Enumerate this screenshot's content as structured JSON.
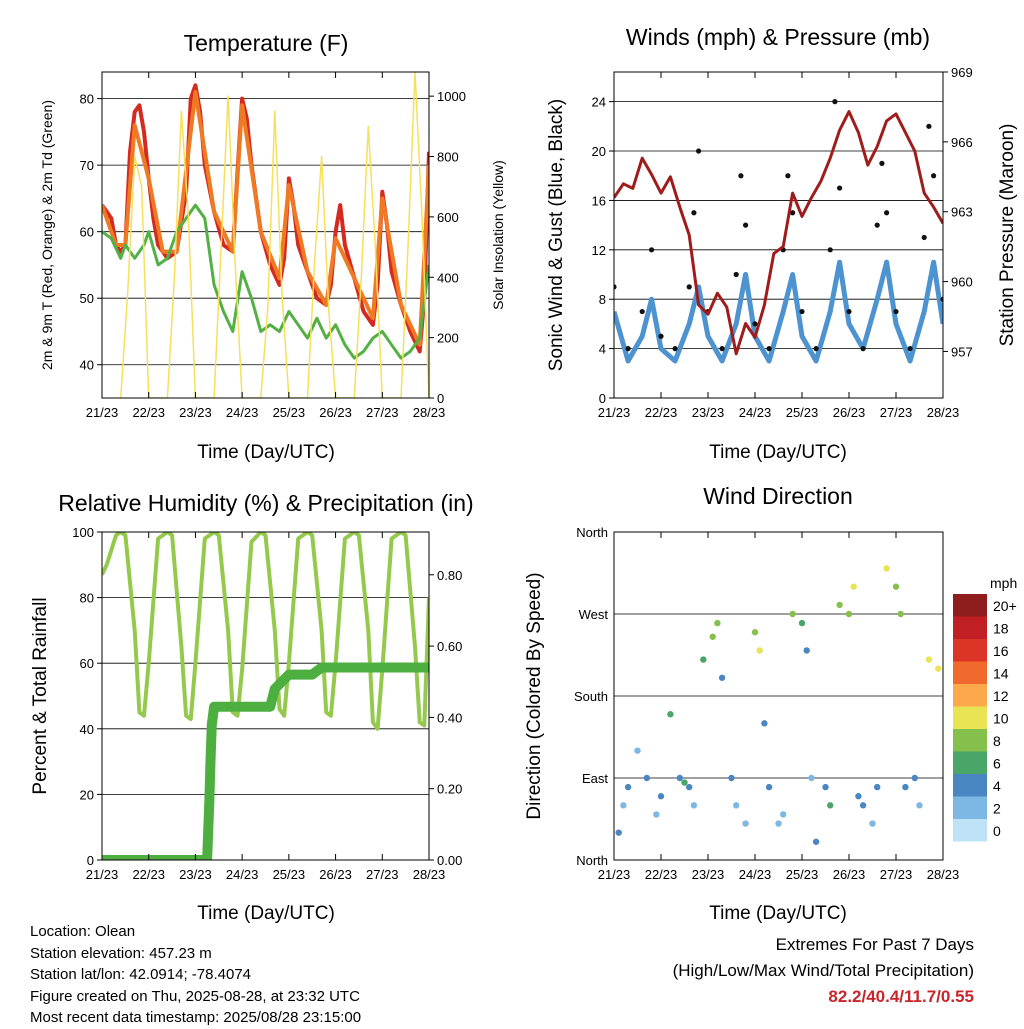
{
  "x_ticks": [
    "21/23",
    "22/23",
    "23/23",
    "24/23",
    "25/23",
    "26/23",
    "27/23",
    "28/23"
  ],
  "panels": {
    "temperature": {
      "title": "Temperature (F)",
      "xlabel": "Time (Day/UTC)",
      "ylabel_left": "2m & 9m T (Red, Orange) & 2m Td (Green)",
      "ylabel_right": "Solar Insolation (Yellow)"
    },
    "winds": {
      "title": "Winds (mph) & Pressure (mb)",
      "xlabel": "Time (Day/UTC)",
      "ylabel_left": "Sonic Wind & Gust (Blue, Black)",
      "ylabel_right": "Station Pressure (Maroon)"
    },
    "humidity": {
      "title": "Relative Humidity (%) & Precipitation (in)",
      "xlabel": "Time (Day/UTC)",
      "ylabel_left": "Percent & Total Rainfall"
    },
    "direction": {
      "title": "Wind Direction",
      "xlabel": "Time (Day/UTC)",
      "ylabel_left": "Direction (Colored By Speed)",
      "legend_title": "mph"
    }
  },
  "footer": {
    "location": "Location: Olean",
    "elevation": "Station elevation: 457.23 m",
    "latlon": "Station lat/lon: 42.0914; -78.4074",
    "created": "Figure created on Thu, 2025-08-28, at 23:32 UTC",
    "recent": "Most recent data timestamp: 2025/08/28 23:15:00"
  },
  "extremes": {
    "line1": "Extremes For Past 7 Days",
    "line2": "(High/Low/Max Wind/Total Precipitation)",
    "values": "82.2/40.4/11.7/0.55"
  },
  "chart_data": [
    {
      "type": "line",
      "title": "Temperature (F)",
      "xlabel": "Time (Day/UTC)",
      "ylabel": "2m & 9m T (Red, Orange) & 2m Td (Green)",
      "y2label": "Solar Insolation (Yellow)",
      "ylim": [
        35,
        84
      ],
      "yticks": [
        40,
        50,
        60,
        70,
        80
      ],
      "y2lim": [
        0,
        1080
      ],
      "y2ticks": [
        0,
        200,
        400,
        600,
        800,
        1000
      ],
      "x_ticks": [
        "21/23",
        "22/23",
        "23/23",
        "24/23",
        "25/23",
        "26/23",
        "27/23",
        "28/23"
      ],
      "colors": {
        "temp2m": "#d42a20",
        "temp9m": "#f07a24",
        "dewpoint": "#52b044",
        "solar": "#f5e05c"
      },
      "series": [
        {
          "axis": "left",
          "color_key": "temp2m",
          "x": [
            0,
            0.1,
            0.2,
            0.3,
            0.4,
            0.5,
            0.6,
            0.7,
            0.8,
            0.9,
            1.0,
            1.1,
            1.2,
            1.4,
            1.6,
            1.8,
            1.9,
            2.0,
            2.1,
            2.2,
            2.4,
            2.6,
            2.8,
            2.9,
            3.0,
            3.1,
            3.2,
            3.4,
            3.6,
            3.8,
            3.9,
            4.0,
            4.1,
            4.2,
            4.4,
            4.6,
            4.8,
            4.9,
            5.0,
            5.1,
            5.2,
            5.4,
            5.6,
            5.8,
            5.9,
            6.0,
            6.1,
            6.2,
            6.4,
            6.6,
            6.8,
            6.9,
            7.0
          ],
          "y": [
            64,
            63,
            62,
            58,
            57,
            58,
            72,
            78,
            79,
            75,
            68,
            62,
            58,
            56,
            57,
            66,
            80,
            82,
            78,
            70,
            63,
            58,
            57,
            69,
            80,
            77,
            70,
            60,
            55,
            52,
            56,
            68,
            64,
            58,
            54,
            50,
            49,
            52,
            60,
            64,
            58,
            53,
            48,
            46,
            52,
            66,
            61,
            54,
            49,
            45,
            42,
            50,
            72
          ]
        },
        {
          "axis": "left",
          "color_key": "temp9m",
          "x": [
            0,
            0.3,
            0.5,
            0.7,
            1.0,
            1.3,
            1.6,
            2.0,
            2.4,
            2.8,
            3.0,
            3.4,
            3.8,
            4.0,
            4.4,
            4.8,
            5.0,
            5.4,
            5.8,
            6.0,
            6.4,
            6.8,
            7.0
          ],
          "y": [
            64,
            58,
            58,
            76,
            68,
            57,
            57,
            81,
            63,
            57,
            79,
            60,
            53,
            67,
            54,
            49,
            59,
            53,
            47,
            65,
            49,
            43,
            70
          ]
        },
        {
          "axis": "left",
          "color_key": "dewpoint",
          "x": [
            0,
            0.2,
            0.4,
            0.5,
            0.7,
            0.9,
            1.0,
            1.2,
            1.4,
            1.6,
            1.8,
            2.0,
            2.2,
            2.4,
            2.6,
            2.8,
            3.0,
            3.2,
            3.4,
            3.6,
            3.8,
            4.0,
            4.2,
            4.4,
            4.6,
            4.8,
            5.0,
            5.2,
            5.4,
            5.6,
            5.8,
            6.0,
            6.2,
            6.4,
            6.6,
            6.8,
            7.0
          ],
          "y": [
            60,
            59,
            56,
            58,
            56,
            58,
            60,
            55,
            56,
            60,
            62,
            64,
            62,
            52,
            48,
            45,
            54,
            50,
            45,
            46,
            45,
            48,
            46,
            44,
            47,
            44,
            46,
            43,
            41,
            42,
            44,
            45,
            43,
            41,
            42,
            44,
            55
          ]
        },
        {
          "axis": "right",
          "color_key": "solar",
          "x": [
            0.4,
            0.55,
            0.7,
            0.85,
            1.0,
            1.4,
            1.55,
            1.7,
            1.85,
            2.0,
            2.4,
            2.55,
            2.7,
            2.85,
            3.0,
            3.4,
            3.55,
            3.7,
            3.85,
            4.0,
            4.4,
            4.55,
            4.7,
            4.85,
            5.0,
            5.4,
            5.55,
            5.7,
            5.85,
            6.0,
            6.4,
            6.55,
            6.7,
            6.85,
            7.0
          ],
          "y": [
            0,
            350,
            800,
            700,
            0,
            0,
            400,
            950,
            600,
            0,
            0,
            500,
            1000,
            450,
            0,
            0,
            300,
            950,
            350,
            0,
            0,
            450,
            800,
            300,
            0,
            0,
            400,
            900,
            500,
            0,
            0,
            500,
            1080,
            600,
            0
          ]
        }
      ]
    },
    {
      "type": "line",
      "title": "Winds (mph) & Pressure (mb)",
      "xlabel": "Time (Day/UTC)",
      "ylabel": "Sonic Wind & Gust (Blue, Black)",
      "y2label": "Station Pressure (Maroon)",
      "ylim": [
        0,
        26.4
      ],
      "yticks": [
        0,
        4,
        8,
        12,
        16,
        20,
        24
      ],
      "y2lim": [
        955,
        969
      ],
      "y2ticks": [
        957,
        960,
        963,
        966,
        969
      ],
      "x_ticks": [
        "21/23",
        "22/23",
        "23/23",
        "24/23",
        "25/23",
        "26/23",
        "27/23",
        "28/23"
      ],
      "colors": {
        "wind": "#4d93d0",
        "gust": "#111111",
        "pressure": "#a01c1c"
      },
      "series": [
        {
          "axis": "left",
          "color_key": "wind",
          "x": [
            0,
            0.3,
            0.6,
            0.8,
            1.0,
            1.3,
            1.6,
            1.8,
            2.0,
            2.3,
            2.6,
            2.8,
            3.0,
            3.3,
            3.6,
            3.8,
            4.0,
            4.3,
            4.6,
            4.8,
            5.0,
            5.3,
            5.6,
            5.8,
            6.0,
            6.3,
            6.6,
            6.8,
            7.0
          ],
          "y": [
            7,
            3,
            5,
            8,
            4,
            3,
            6,
            9,
            5,
            3,
            6,
            10,
            5,
            3,
            7,
            10,
            5,
            3,
            7,
            11,
            6,
            4,
            8,
            11,
            6,
            3,
            7,
            11,
            6
          ]
        },
        {
          "axis": "left",
          "color_key": "gust",
          "x": [
            0,
            0.3,
            0.6,
            0.8,
            1.0,
            1.3,
            1.6,
            1.7,
            1.8,
            2.0,
            2.3,
            2.6,
            2.7,
            2.8,
            3.0,
            3.3,
            3.6,
            3.7,
            3.8,
            4.0,
            4.3,
            4.6,
            4.7,
            4.8,
            5.0,
            5.3,
            5.6,
            5.7,
            5.8,
            6.0,
            6.3,
            6.6,
            6.7,
            6.8,
            7.0
          ],
          "y": [
            9,
            4,
            7,
            12,
            5,
            4,
            9,
            15,
            20,
            7,
            4,
            10,
            18,
            14,
            6,
            4,
            12,
            18,
            15,
            7,
            4,
            12,
            24,
            17,
            7,
            4,
            14,
            19,
            15,
            7,
            4,
            13,
            22,
            18,
            8
          ]
        },
        {
          "axis": "right",
          "color_key": "pressure",
          "x": [
            0,
            0.2,
            0.4,
            0.6,
            0.8,
            1.0,
            1.2,
            1.4,
            1.6,
            1.8,
            2.0,
            2.2,
            2.4,
            2.6,
            2.8,
            3.0,
            3.2,
            3.4,
            3.6,
            3.8,
            4.0,
            4.2,
            4.4,
            4.6,
            4.8,
            5.0,
            5.2,
            5.4,
            5.6,
            5.8,
            6.0,
            6.2,
            6.4,
            6.6,
            6.8,
            7.0
          ],
          "y": [
            963.6,
            964.2,
            964.0,
            965.3,
            964.6,
            963.8,
            964.5,
            963.2,
            962.0,
            959.0,
            958.6,
            959.5,
            958.9,
            956.9,
            958.2,
            957.6,
            959.0,
            961.2,
            961.5,
            963.8,
            962.8,
            963.6,
            964.3,
            965.3,
            966.5,
            967.3,
            966.4,
            965.0,
            965.8,
            966.9,
            967.2,
            966.4,
            965.6,
            963.8,
            963.2,
            962.5
          ]
        }
      ]
    },
    {
      "type": "line",
      "title": "Relative Humidity (%) & Precipitation (in)",
      "xlabel": "Time (Day/UTC)",
      "ylabel": "Percent & Total Rainfall",
      "ylim": [
        0,
        100
      ],
      "yticks": [
        0,
        20,
        40,
        60,
        80,
        100
      ],
      "y2lim": [
        0,
        0.92
      ],
      "y2ticks": [
        0.0,
        0.2,
        0.4,
        0.6,
        0.8
      ],
      "y2ticklabels": [
        "0.00",
        "0.20",
        "0.40",
        "0.60",
        "0.80"
      ],
      "x_ticks": [
        "21/23",
        "22/23",
        "23/23",
        "24/23",
        "25/23",
        "26/23",
        "27/23",
        "28/23"
      ],
      "colors": {
        "rh": "#95c94e",
        "precip": "#4caf3f"
      },
      "series": [
        {
          "axis": "left",
          "color_key": "rh",
          "x": [
            0,
            0.1,
            0.3,
            0.4,
            0.5,
            0.7,
            0.8,
            0.9,
            1.0,
            1.2,
            1.4,
            1.5,
            1.7,
            1.8,
            1.9,
            2.0,
            2.2,
            2.4,
            2.5,
            2.7,
            2.8,
            2.9,
            3.0,
            3.2,
            3.4,
            3.5,
            3.7,
            3.8,
            3.9,
            4.0,
            4.2,
            4.4,
            4.5,
            4.7,
            4.8,
            4.9,
            5.0,
            5.2,
            5.4,
            5.5,
            5.7,
            5.8,
            5.9,
            6.0,
            6.2,
            6.4,
            6.5,
            6.7,
            6.8,
            6.9,
            7.0
          ],
          "y": [
            87,
            90,
            99,
            100,
            99,
            70,
            45,
            44,
            60,
            98,
            100,
            99,
            65,
            44,
            43,
            60,
            98,
            100,
            99,
            70,
            45,
            44,
            58,
            97,
            100,
            99,
            70,
            46,
            44,
            60,
            98,
            100,
            99,
            70,
            45,
            44,
            60,
            98,
            100,
            99,
            70,
            42,
            40,
            58,
            98,
            100,
            99,
            65,
            42,
            41,
            80
          ]
        },
        {
          "axis": "right",
          "color_key": "precip",
          "x": [
            0,
            1.0,
            2.0,
            2.25,
            2.3,
            2.32,
            2.35,
            2.4,
            2.8,
            3.2,
            3.6,
            3.7,
            4.0,
            4.5,
            4.7,
            5.0,
            5.5,
            6.0,
            6.5,
            7.0
          ],
          "y": [
            0.0,
            0.0,
            0.0,
            0.0,
            0.17,
            0.27,
            0.38,
            0.43,
            0.43,
            0.43,
            0.43,
            0.48,
            0.52,
            0.52,
            0.54,
            0.54,
            0.54,
            0.54,
            0.54,
            0.54
          ]
        }
      ]
    },
    {
      "type": "scatter",
      "title": "Wind Direction",
      "xlabel": "Time (Day/UTC)",
      "ylabel": "Direction (Colored By Speed)",
      "yticks": [
        "North",
        "East",
        "South",
        "West",
        "North"
      ],
      "ylim": [
        0,
        360
      ],
      "x_ticks": [
        "21/23",
        "22/23",
        "23/23",
        "24/23",
        "25/23",
        "26/23",
        "27/23",
        "28/23"
      ],
      "legend_title": "mph",
      "legend_placement": "right",
      "legend_labels": [
        "20+",
        "18",
        "16",
        "14",
        "12",
        "10",
        "8",
        "6",
        "4",
        "2",
        "0"
      ],
      "legend_colors": [
        "#8f1d1d",
        "#c01f24",
        "#dc3527",
        "#f06a2d",
        "#fba94a",
        "#e8e453",
        "#86c04c",
        "#4aa569",
        "#4a87c2",
        "#7cb8e3",
        "#bfe3f6"
      ],
      "series": [
        {
          "name": "",
          "x": [
            0.1,
            0.2,
            0.3,
            0.5,
            0.7,
            0.9,
            1.0,
            1.2,
            1.4,
            1.5,
            1.6,
            1.7,
            1.9,
            2.1,
            2.2,
            2.3,
            2.5,
            2.6,
            2.8,
            3.0,
            3.1,
            3.2,
            3.3,
            3.5,
            3.6,
            3.8,
            4.0,
            4.1,
            4.2,
            4.3,
            4.5,
            4.6,
            4.8,
            5.0,
            5.1,
            5.2,
            5.3,
            5.5,
            5.6,
            5.8,
            6.0,
            6.1,
            6.2,
            6.4,
            6.5,
            6.7,
            6.9
          ],
          "y": [
            30,
            60,
            80,
            120,
            90,
            50,
            70,
            160,
            90,
            85,
            80,
            60,
            220,
            245,
            260,
            200,
            90,
            60,
            40,
            250,
            230,
            150,
            80,
            40,
            50,
            270,
            260,
            230,
            90,
            20,
            80,
            60,
            280,
            270,
            300,
            70,
            60,
            40,
            80,
            320,
            300,
            270,
            80,
            90,
            60,
            220,
            210
          ],
          "speed": [
            3,
            2,
            4,
            1,
            3,
            2,
            4,
            6,
            4,
            5,
            3,
            2,
            6,
            8,
            7,
            4,
            3,
            2,
            1,
            7,
            9,
            3,
            4,
            2,
            1,
            8,
            6,
            3,
            2,
            3,
            3,
            5,
            7,
            8,
            9,
            3,
            4,
            2,
            3,
            9,
            8,
            7,
            3,
            4,
            2,
            10,
            9
          ]
        }
      ]
    }
  ]
}
